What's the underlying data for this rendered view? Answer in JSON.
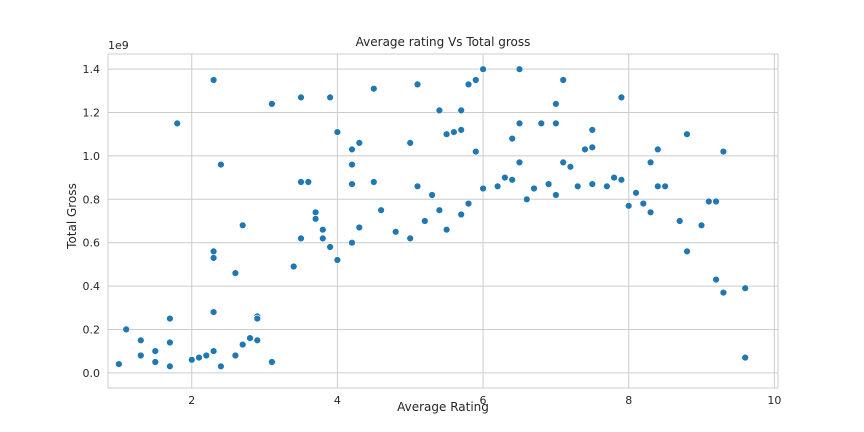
{
  "chart_data": {
    "type": "scatter",
    "title": "Average rating Vs Total gross",
    "xlabel": "Average Rating",
    "ylabel": "Total Gross",
    "offset_text": "1e9",
    "xlim": [
      0.85,
      10.05
    ],
    "ylim": [
      -0.07,
      1.47
    ],
    "x_ticks": [
      2,
      4,
      6,
      8,
      10
    ],
    "x_tick_labels": [
      "2",
      "4",
      "6",
      "8",
      "10"
    ],
    "y_ticks": [
      0.0,
      0.2,
      0.4,
      0.6,
      0.8,
      1.0,
      1.2,
      1.4
    ],
    "y_tick_labels": [
      "0.0",
      "0.2",
      "0.4",
      "0.6",
      "0.8",
      "1.0",
      "1.2",
      "1.4"
    ],
    "grid": true,
    "marker_color": "#1f77b4",
    "y_unit_scale": 1000000000,
    "points_note": "y values in units of 1e9",
    "points": [
      [
        1.8,
        1.15
      ],
      [
        2.3,
        1.35
      ],
      [
        2.4,
        0.96
      ],
      [
        3.1,
        1.24
      ],
      [
        3.5,
        1.27
      ],
      [
        3.9,
        1.27
      ],
      [
        4.0,
        1.11
      ],
      [
        4.2,
        1.03
      ],
      [
        4.3,
        1.06
      ],
      [
        4.5,
        1.31
      ],
      [
        5.0,
        1.06
      ],
      [
        5.1,
        1.33
      ],
      [
        5.4,
        1.21
      ],
      [
        5.5,
        1.1
      ],
      [
        5.6,
        1.11
      ],
      [
        5.7,
        1.21
      ],
      [
        5.7,
        1.12
      ],
      [
        5.8,
        1.33
      ],
      [
        5.9,
        1.35
      ],
      [
        5.9,
        1.02
      ],
      [
        6.0,
        1.4
      ],
      [
        6.5,
        1.4
      ],
      [
        6.4,
        1.08
      ],
      [
        6.5,
        1.15
      ],
      [
        6.8,
        1.15
      ],
      [
        7.0,
        1.24
      ],
      [
        7.0,
        1.15
      ],
      [
        7.1,
        1.35
      ],
      [
        7.1,
        0.97
      ],
      [
        7.2,
        0.95
      ],
      [
        7.4,
        1.03
      ],
      [
        7.5,
        1.12
      ],
      [
        7.5,
        1.04
      ],
      [
        7.9,
        1.27
      ],
      [
        8.3,
        0.97
      ],
      [
        8.4,
        1.03
      ],
      [
        8.8,
        1.1
      ],
      [
        9.3,
        1.02
      ],
      [
        2.3,
        0.56
      ],
      [
        2.3,
        0.53
      ],
      [
        2.3,
        0.28
      ],
      [
        2.7,
        0.68
      ],
      [
        2.6,
        0.46
      ],
      [
        3.4,
        0.49
      ],
      [
        3.5,
        0.62
      ],
      [
        3.5,
        0.88
      ],
      [
        3.6,
        0.88
      ],
      [
        3.7,
        0.74
      ],
      [
        3.7,
        0.71
      ],
      [
        3.8,
        0.66
      ],
      [
        3.8,
        0.62
      ],
      [
        3.9,
        0.58
      ],
      [
        4.0,
        0.52
      ],
      [
        4.2,
        0.87
      ],
      [
        4.2,
        0.96
      ],
      [
        4.3,
        0.67
      ],
      [
        4.2,
        0.6
      ],
      [
        4.5,
        0.88
      ],
      [
        4.6,
        0.75
      ],
      [
        4.8,
        0.65
      ],
      [
        5.0,
        0.62
      ],
      [
        5.1,
        0.86
      ],
      [
        5.2,
        0.7
      ],
      [
        5.3,
        0.82
      ],
      [
        5.4,
        0.75
      ],
      [
        5.5,
        0.66
      ],
      [
        5.7,
        0.73
      ],
      [
        5.8,
        0.78
      ],
      [
        6.0,
        0.85
      ],
      [
        6.2,
        0.86
      ],
      [
        6.3,
        0.9
      ],
      [
        6.4,
        0.89
      ],
      [
        6.5,
        0.97
      ],
      [
        6.6,
        0.8
      ],
      [
        6.7,
        0.85
      ],
      [
        6.9,
        0.87
      ],
      [
        7.0,
        0.82
      ],
      [
        7.3,
        0.86
      ],
      [
        7.5,
        0.87
      ],
      [
        7.7,
        0.86
      ],
      [
        7.8,
        0.9
      ],
      [
        7.9,
        0.89
      ],
      [
        8.0,
        0.77
      ],
      [
        8.1,
        0.83
      ],
      [
        8.2,
        0.78
      ],
      [
        8.3,
        0.74
      ],
      [
        8.4,
        0.86
      ],
      [
        8.5,
        0.86
      ],
      [
        8.7,
        0.7
      ],
      [
        8.8,
        0.56
      ],
      [
        9.0,
        0.68
      ],
      [
        9.1,
        0.79
      ],
      [
        9.2,
        0.79
      ],
      [
        9.3,
        0.37
      ],
      [
        9.6,
        0.39
      ],
      [
        9.6,
        0.07
      ],
      [
        9.2,
        0.43
      ],
      [
        1.0,
        0.04
      ],
      [
        1.1,
        0.2
      ],
      [
        1.3,
        0.15
      ],
      [
        1.3,
        0.08
      ],
      [
        1.5,
        0.1
      ],
      [
        1.5,
        0.05
      ],
      [
        1.7,
        0.25
      ],
      [
        1.7,
        0.14
      ],
      [
        1.7,
        0.03
      ],
      [
        2.0,
        0.06
      ],
      [
        2.1,
        0.07
      ],
      [
        2.2,
        0.08
      ],
      [
        2.3,
        0.1
      ],
      [
        2.4,
        0.03
      ],
      [
        2.6,
        0.08
      ],
      [
        2.7,
        0.13
      ],
      [
        2.8,
        0.16
      ],
      [
        2.9,
        0.26
      ],
      [
        2.9,
        0.25
      ],
      [
        2.9,
        0.15
      ],
      [
        3.1,
        0.05
      ]
    ]
  }
}
